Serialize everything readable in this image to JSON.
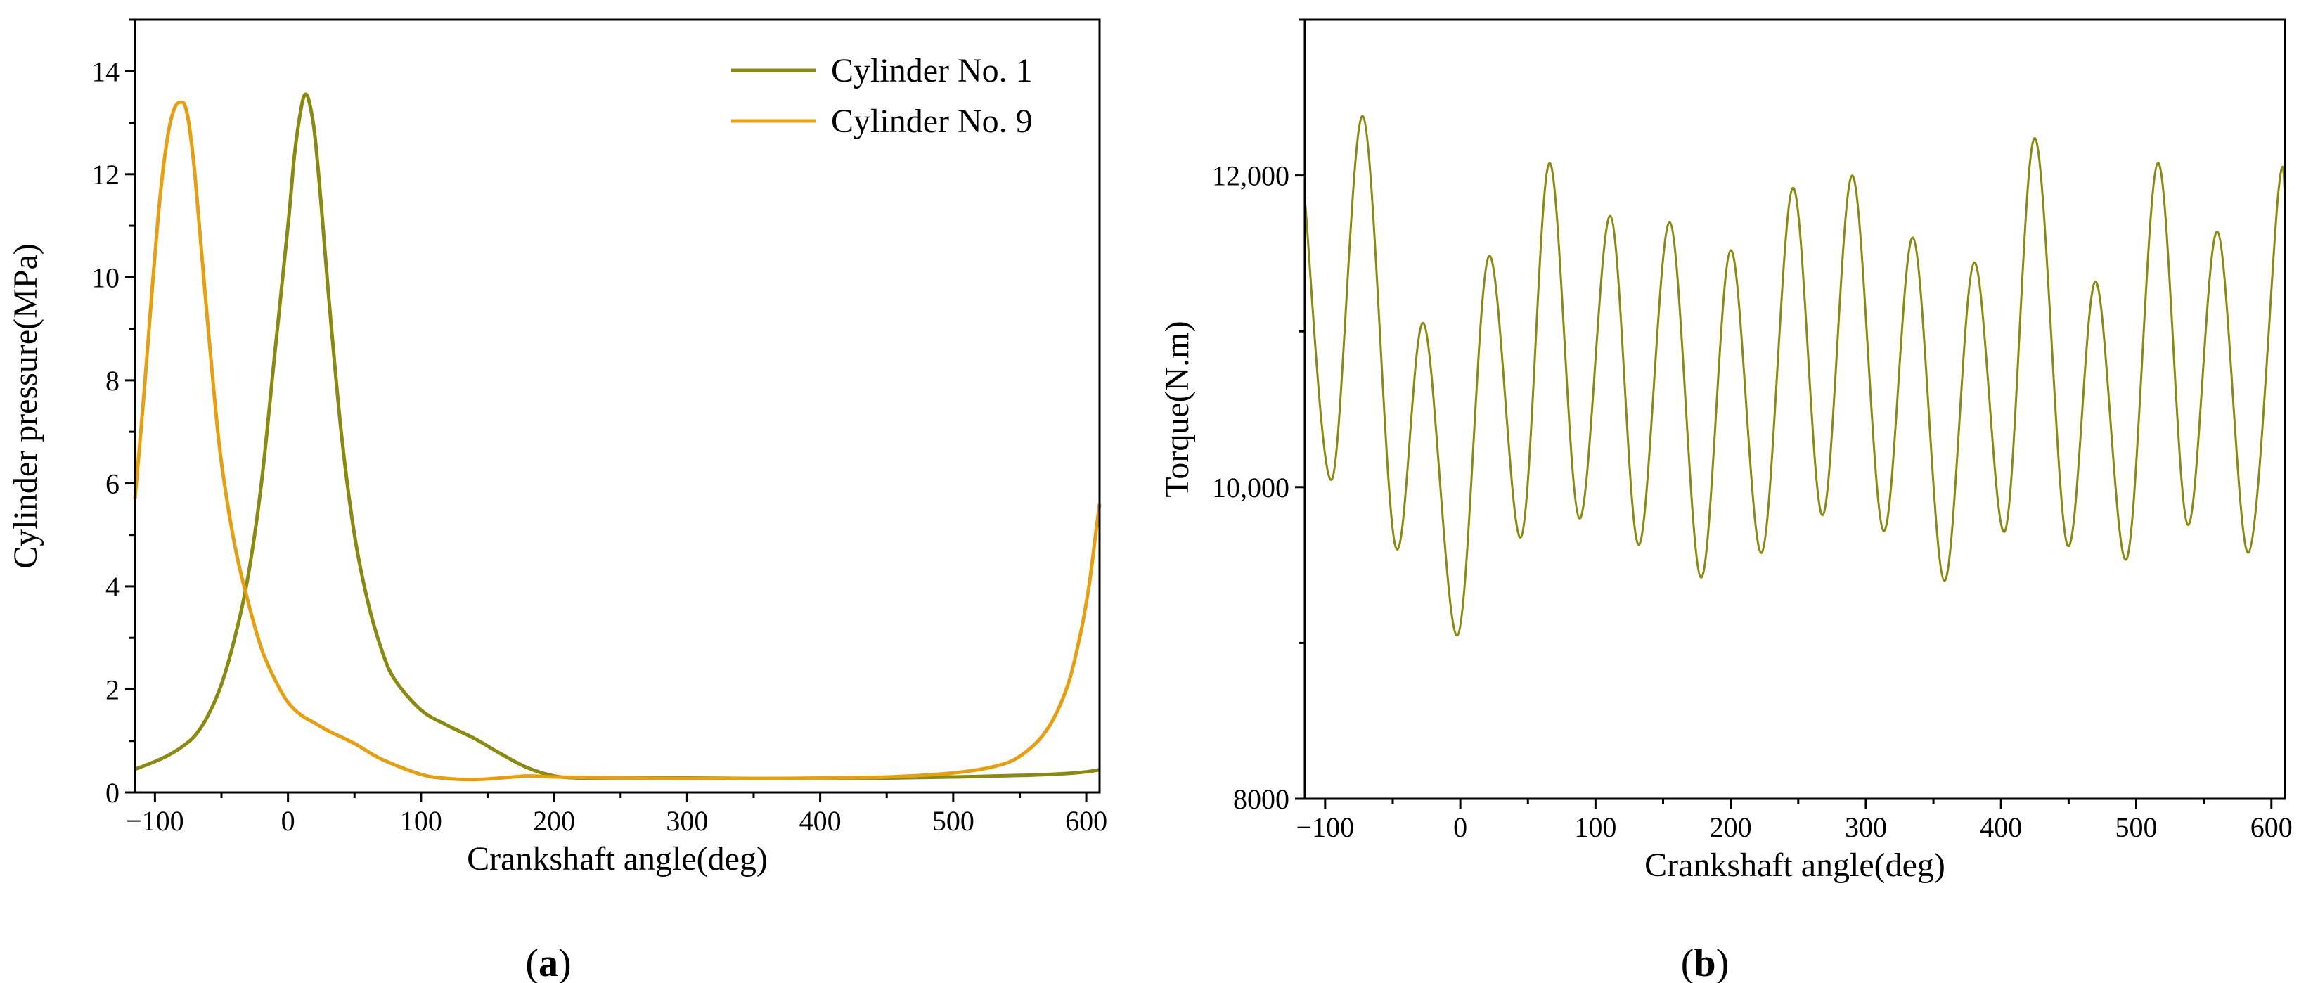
{
  "chart_data": [
    {
      "type": "line",
      "panel": "a",
      "caption": "a",
      "xlabel": "Crankshaft angle(deg)",
      "ylabel": "Cylinder pressure(MPa)",
      "xlim": [
        -115,
        610
      ],
      "ylim": [
        0,
        15
      ],
      "xticks": [
        -100,
        0,
        100,
        200,
        300,
        400,
        500,
        600
      ],
      "xtick_labels": [
        "−100",
        "0",
        "100",
        "200",
        "300",
        "400",
        "500",
        "600"
      ],
      "yticks": [
        0,
        2,
        4,
        6,
        8,
        10,
        12,
        14
      ],
      "ytick_labels": [
        "0",
        "2",
        "4",
        "6",
        "8",
        "10",
        "12",
        "14"
      ],
      "legend_position": "top-right",
      "series": [
        {
          "name": "Cylinder No. 1",
          "color": "#8a8a12",
          "x": [
            -115,
            -100,
            -90,
            -80,
            -70,
            -60,
            -50,
            -40,
            -30,
            -20,
            -10,
            0,
            5,
            10,
            13,
            16,
            20,
            25,
            30,
            40,
            50,
            60,
            70,
            80,
            100,
            120,
            140,
            160,
            180,
            200,
            220,
            250,
            300,
            350,
            400,
            450,
            500,
            550,
            580,
            600,
            610
          ],
          "values": [
            0.45,
            0.6,
            0.72,
            0.88,
            1.1,
            1.5,
            2.1,
            3.0,
            4.2,
            6.0,
            8.5,
            11.0,
            12.4,
            13.3,
            13.55,
            13.4,
            12.8,
            11.4,
            9.8,
            7.0,
            5.0,
            3.7,
            2.8,
            2.2,
            1.6,
            1.3,
            1.05,
            0.75,
            0.48,
            0.32,
            0.28,
            0.28,
            0.28,
            0.27,
            0.27,
            0.28,
            0.3,
            0.33,
            0.36,
            0.4,
            0.44
          ]
        },
        {
          "name": "Cylinder No. 9",
          "color": "#e69f12",
          "x": [
            -115,
            -108,
            -102,
            -96,
            -90,
            -85,
            -80,
            -77,
            -74,
            -70,
            -65,
            -60,
            -55,
            -50,
            -40,
            -30,
            -20,
            -10,
            0,
            10,
            20,
            30,
            50,
            70,
            100,
            120,
            140,
            160,
            180,
            200,
            250,
            300,
            350,
            400,
            450,
            500,
            530,
            550,
            570,
            585,
            595,
            602,
            607,
            610
          ],
          "values": [
            5.7,
            7.8,
            9.8,
            11.6,
            12.8,
            13.3,
            13.4,
            13.3,
            12.9,
            12.0,
            10.5,
            9.0,
            7.6,
            6.4,
            4.8,
            3.7,
            2.8,
            2.2,
            1.75,
            1.5,
            1.35,
            1.2,
            0.95,
            0.65,
            0.35,
            0.27,
            0.25,
            0.28,
            0.32,
            0.3,
            0.28,
            0.27,
            0.27,
            0.28,
            0.3,
            0.38,
            0.5,
            0.7,
            1.2,
            2.0,
            3.0,
            4.0,
            5.0,
            5.6
          ]
        }
      ]
    },
    {
      "type": "line",
      "panel": "b",
      "caption": "b",
      "xlabel": "Crankshaft angle(deg)",
      "ylabel": "Torque(N.m)",
      "xlim": [
        -115,
        610
      ],
      "ylim": [
        8000,
        13000
      ],
      "xticks": [
        -100,
        0,
        100,
        200,
        300,
        400,
        500,
        600
      ],
      "xtick_labels": [
        "−100",
        "0",
        "100",
        "200",
        "300",
        "400",
        "500",
        "600"
      ],
      "yticks": [
        8000,
        10000,
        12000
      ],
      "ytick_labels": [
        "8000",
        "10,000",
        "12,000"
      ],
      "series": [
        {
          "name": "Torque",
          "color": "#8a8a12",
          "x": [
            -115,
            -95,
            -72,
            -48,
            -27,
            -2,
            21,
            45,
            66,
            88,
            111,
            132,
            155,
            178,
            200,
            223,
            246,
            268,
            290,
            313,
            335,
            358,
            380,
            403,
            425,
            449,
            470,
            493,
            516,
            538,
            560,
            583,
            605,
            610
          ],
          "values": [
            11850,
            10050,
            12380,
            9620,
            11050,
            9050,
            11480,
            9680,
            12080,
            9800,
            11740,
            9630,
            11700,
            9420,
            11520,
            9580,
            11920,
            9820,
            12000,
            9720,
            11600,
            9400,
            11440,
            9720,
            12240,
            9630,
            11320,
            9540,
            12080,
            9760,
            11640,
            9580,
            11880,
            11900
          ]
        }
      ]
    }
  ]
}
